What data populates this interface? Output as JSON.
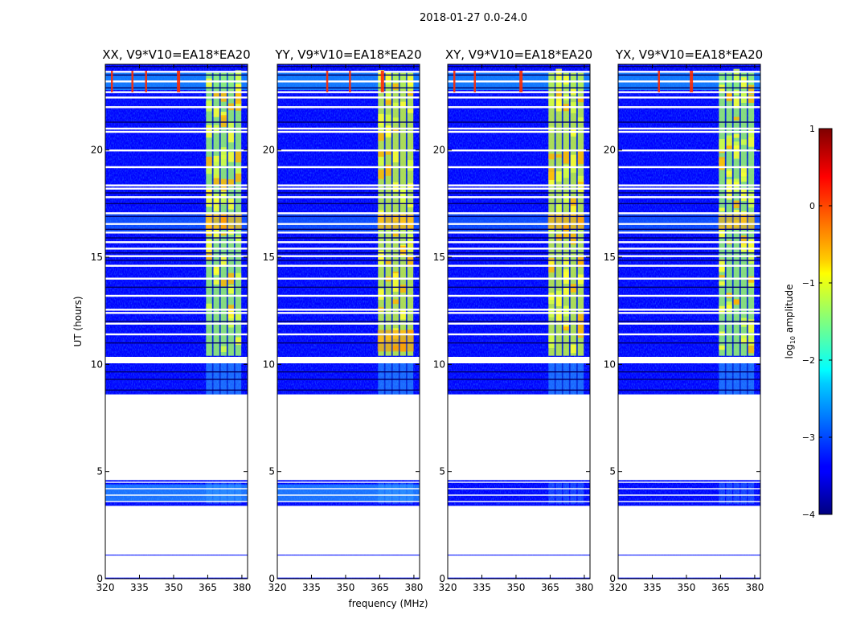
{
  "suptitle": "2018-01-27 0.0-24.0",
  "chart_data": {
    "type": "heatmap",
    "subplots": [
      {
        "title": "XX, V9*V10=EA18*EA20",
        "polarization": "XX"
      },
      {
        "title": "YY, V9*V10=EA18*EA20",
        "polarization": "YY"
      },
      {
        "title": "XY, V9*V10=EA18*EA20",
        "polarization": "XY"
      },
      {
        "title": "YX, V9*V10=EA18*EA20",
        "polarization": "YX"
      }
    ],
    "xlabel": "frequency (MHz)",
    "ylabel": "UT (hours)",
    "xlim": [
      320,
      382.5
    ],
    "ylim": [
      0,
      24
    ],
    "xticks": [
      320,
      335,
      350,
      365,
      380
    ],
    "yticks": [
      0,
      5,
      10,
      15,
      20
    ],
    "colorbar": {
      "label": "log10 amplitude",
      "label_base": "log",
      "label_sub": "10",
      "label_rest": " amplitude",
      "range": [
        -4,
        1
      ],
      "ticks": [
        1,
        0,
        -1,
        -2,
        -3,
        -4
      ],
      "tick_labels": [
        "1",
        "0",
        "−1",
        "−2",
        "−3",
        "−4"
      ],
      "colormap": "jet"
    },
    "data_coverage_ut": [
      [
        0,
        0.05
      ],
      [
        1.08,
        1.12
      ],
      [
        3.4,
        4.6
      ],
      [
        8.6,
        24.0
      ]
    ],
    "bright_band_mhz": [
      364,
      380
    ],
    "colors": {
      "background": "#0000ff",
      "axis": "#000000",
      "gap": "#ffffff"
    }
  }
}
